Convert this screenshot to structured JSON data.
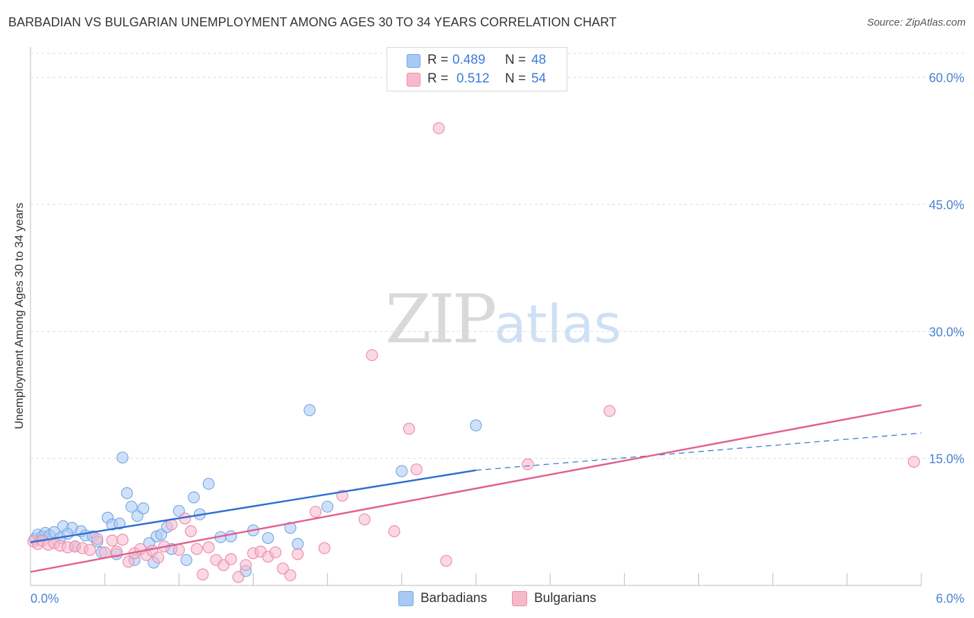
{
  "title": "BARBADIAN VS BULGARIAN UNEMPLOYMENT AMONG AGES 30 TO 34 YEARS CORRELATION CHART",
  "source": "Source: ZipAtlas.com",
  "watermark": {
    "zip": "ZIP",
    "atlas": "atlas"
  },
  "legend": {
    "rows": [
      {
        "r_label": "R =",
        "r_value": "0.489",
        "n_label": "N =",
        "n_value": "48",
        "color": "#a8c8f5"
      },
      {
        "r_label": "R =",
        "r_value": "0.512",
        "n_label": "N =",
        "n_value": "54",
        "color": "#f8b8cc"
      }
    ]
  },
  "bottom_legend": [
    {
      "label": "Barbadians",
      "color": "#a8c8f5"
    },
    {
      "label": "Bulgarians",
      "color": "#f8b8cc"
    }
  ],
  "colors": {
    "blue_fill": "#a8c8f5",
    "blue_stroke": "#7aa8e0",
    "blue_line": "#2f6fd0",
    "pink_fill": "#f8b8cc",
    "pink_stroke": "#eb8fac",
    "pink_line": "#e0608e",
    "grid": "#dddddd",
    "tick_text": "#4a82d0"
  },
  "chart_data": {
    "type": "scatter",
    "title": "BARBADIAN VS BULGARIAN UNEMPLOYMENT AMONG AGES 30 TO 34 YEARS CORRELATION CHART",
    "xlabel": "",
    "ylabel": "Unemployment Among Ages 30 to 34 years",
    "xlim": [
      0,
      6
    ],
    "ylim": [
      0,
      63
    ],
    "x_tick_labels": [
      {
        "value": 0,
        "label": "0.0%"
      },
      {
        "value": 6,
        "label": "6.0%"
      }
    ],
    "y_tick_labels": [
      {
        "value": 15,
        "label": "15.0%"
      },
      {
        "value": 30,
        "label": "30.0%"
      },
      {
        "value": 45,
        "label": "45.0%"
      },
      {
        "value": 60,
        "label": "60.0%"
      }
    ],
    "series": [
      {
        "name": "Barbadians",
        "r": 0.489,
        "n": 48,
        "trend": {
          "x0": 0.0,
          "y0": 5.1,
          "x1": 3.0,
          "y1": 13.6,
          "dash_x1": 6.0,
          "dash_y1": 18.0
        },
        "points": [
          [
            0.03,
            5.5
          ],
          [
            0.05,
            6.0
          ],
          [
            0.08,
            5.8
          ],
          [
            0.1,
            6.2
          ],
          [
            0.13,
            5.9
          ],
          [
            0.16,
            6.3
          ],
          [
            0.2,
            5.6
          ],
          [
            0.22,
            7.0
          ],
          [
            0.28,
            6.8
          ],
          [
            0.3,
            4.6
          ],
          [
            0.34,
            6.4
          ],
          [
            0.37,
            5.9
          ],
          [
            0.42,
            5.8
          ],
          [
            0.48,
            3.9
          ],
          [
            0.52,
            8.0
          ],
          [
            0.55,
            7.2
          ],
          [
            0.6,
            7.3
          ],
          [
            0.62,
            15.1
          ],
          [
            0.65,
            10.9
          ],
          [
            0.68,
            9.3
          ],
          [
            0.72,
            8.2
          ],
          [
            0.76,
            9.1
          ],
          [
            0.8,
            5.0
          ],
          [
            0.85,
            5.8
          ],
          [
            0.88,
            6.0
          ],
          [
            0.92,
            6.9
          ],
          [
            0.95,
            4.3
          ],
          [
            1.0,
            8.8
          ],
          [
            1.05,
            3.0
          ],
          [
            1.1,
            10.4
          ],
          [
            1.14,
            8.4
          ],
          [
            1.2,
            12.0
          ],
          [
            1.28,
            5.7
          ],
          [
            1.35,
            5.8
          ],
          [
            1.45,
            1.7
          ],
          [
            1.5,
            6.5
          ],
          [
            1.6,
            5.6
          ],
          [
            1.75,
            6.8
          ],
          [
            1.8,
            4.9
          ],
          [
            1.88,
            20.7
          ],
          [
            2.0,
            9.3
          ],
          [
            2.5,
            13.5
          ],
          [
            3.0,
            18.9
          ],
          [
            0.25,
            6.1
          ],
          [
            0.45,
            5.2
          ],
          [
            0.58,
            3.7
          ],
          [
            0.7,
            3.0
          ],
          [
            0.83,
            2.7
          ]
        ]
      },
      {
        "name": "Bulgarians",
        "r": 0.512,
        "n": 54,
        "trend": {
          "x0": 0.0,
          "y0": 1.6,
          "x1": 6.0,
          "y1": 21.3
        },
        "points": [
          [
            0.02,
            5.2
          ],
          [
            0.05,
            4.9
          ],
          [
            0.08,
            5.3
          ],
          [
            0.12,
            4.8
          ],
          [
            0.16,
            5.0
          ],
          [
            0.2,
            4.7
          ],
          [
            0.25,
            4.5
          ],
          [
            0.3,
            4.6
          ],
          [
            0.35,
            4.4
          ],
          [
            0.4,
            4.2
          ],
          [
            0.45,
            5.5
          ],
          [
            0.5,
            3.9
          ],
          [
            0.55,
            5.3
          ],
          [
            0.58,
            4.0
          ],
          [
            0.62,
            5.4
          ],
          [
            0.66,
            2.8
          ],
          [
            0.7,
            3.8
          ],
          [
            0.74,
            4.3
          ],
          [
            0.78,
            3.6
          ],
          [
            0.82,
            4.1
          ],
          [
            0.86,
            3.3
          ],
          [
            0.9,
            4.6
          ],
          [
            0.95,
            7.2
          ],
          [
            1.0,
            4.2
          ],
          [
            1.04,
            7.9
          ],
          [
            1.08,
            6.4
          ],
          [
            1.12,
            4.3
          ],
          [
            1.16,
            1.3
          ],
          [
            1.2,
            4.5
          ],
          [
            1.25,
            3.0
          ],
          [
            1.3,
            2.4
          ],
          [
            1.35,
            3.1
          ],
          [
            1.4,
            1.0
          ],
          [
            1.45,
            2.4
          ],
          [
            1.5,
            3.8
          ],
          [
            1.55,
            4.0
          ],
          [
            1.6,
            3.4
          ],
          [
            1.65,
            3.9
          ],
          [
            1.7,
            2.0
          ],
          [
            1.75,
            1.2
          ],
          [
            1.8,
            3.7
          ],
          [
            1.92,
            8.7
          ],
          [
            1.98,
            4.4
          ],
          [
            2.1,
            10.6
          ],
          [
            2.25,
            7.8
          ],
          [
            2.3,
            27.2
          ],
          [
            2.45,
            6.4
          ],
          [
            2.55,
            18.5
          ],
          [
            2.6,
            13.7
          ],
          [
            2.75,
            54.0
          ],
          [
            2.8,
            2.9
          ],
          [
            3.35,
            14.3
          ],
          [
            3.9,
            20.6
          ],
          [
            5.95,
            14.6
          ]
        ]
      }
    ]
  }
}
